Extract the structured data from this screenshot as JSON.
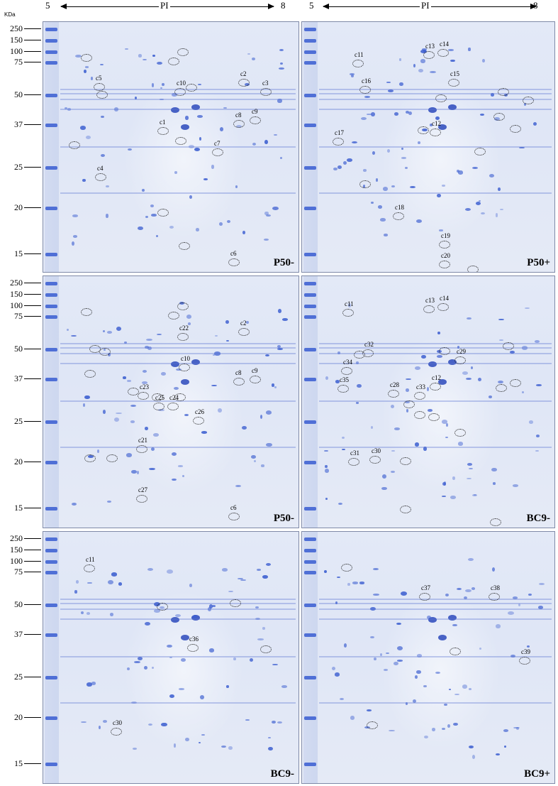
{
  "top_axis": [
    {
      "left_label": "5",
      "axis_label": "PI",
      "right_label": "8"
    },
    {
      "left_label": "5",
      "axis_label": "PI",
      "right_label": "8"
    }
  ],
  "mw_unit": "KDa",
  "mw_rows": [
    {
      "markers": [
        "250",
        "150",
        "100",
        "75",
        "50",
        "37",
        "25",
        "20",
        "15"
      ]
    },
    {
      "markers": [
        "250",
        "150",
        "100",
        "75",
        "50",
        "37",
        "25",
        "20",
        "15"
      ]
    },
    {
      "markers": [
        "250",
        "150",
        "100",
        "75",
        "50",
        "37",
        "25",
        "20",
        "15"
      ]
    }
  ],
  "panels": [
    {
      "title": "P50-",
      "spots": [
        "c1",
        "c2",
        "c3",
        "c4",
        "c5",
        "c6",
        "c7",
        "c8",
        "c9",
        "c10"
      ]
    },
    {
      "title": "P50+",
      "spots": [
        "c11",
        "c12",
        "c13",
        "c14",
        "c15",
        "c16",
        "c17",
        "c18",
        "c19",
        "c20"
      ]
    },
    {
      "title": "P50-",
      "spots": [
        "c2",
        "c6",
        "c8",
        "c9",
        "c10",
        "c21",
        "c22",
        "c23",
        "c24",
        "c25",
        "c26",
        "c27"
      ]
    },
    {
      "title": "BC9-",
      "spots": [
        "c11",
        "c12",
        "c13",
        "c14",
        "c28",
        "c29",
        "c30",
        "c31",
        "c32",
        "c33",
        "c34",
        "c35"
      ]
    },
    {
      "title": "BC9-",
      "spots": [
        "c11",
        "c30",
        "c36"
      ]
    },
    {
      "title": "BC9+",
      "spots": [
        "c37",
        "c38",
        "c39"
      ]
    }
  ]
}
